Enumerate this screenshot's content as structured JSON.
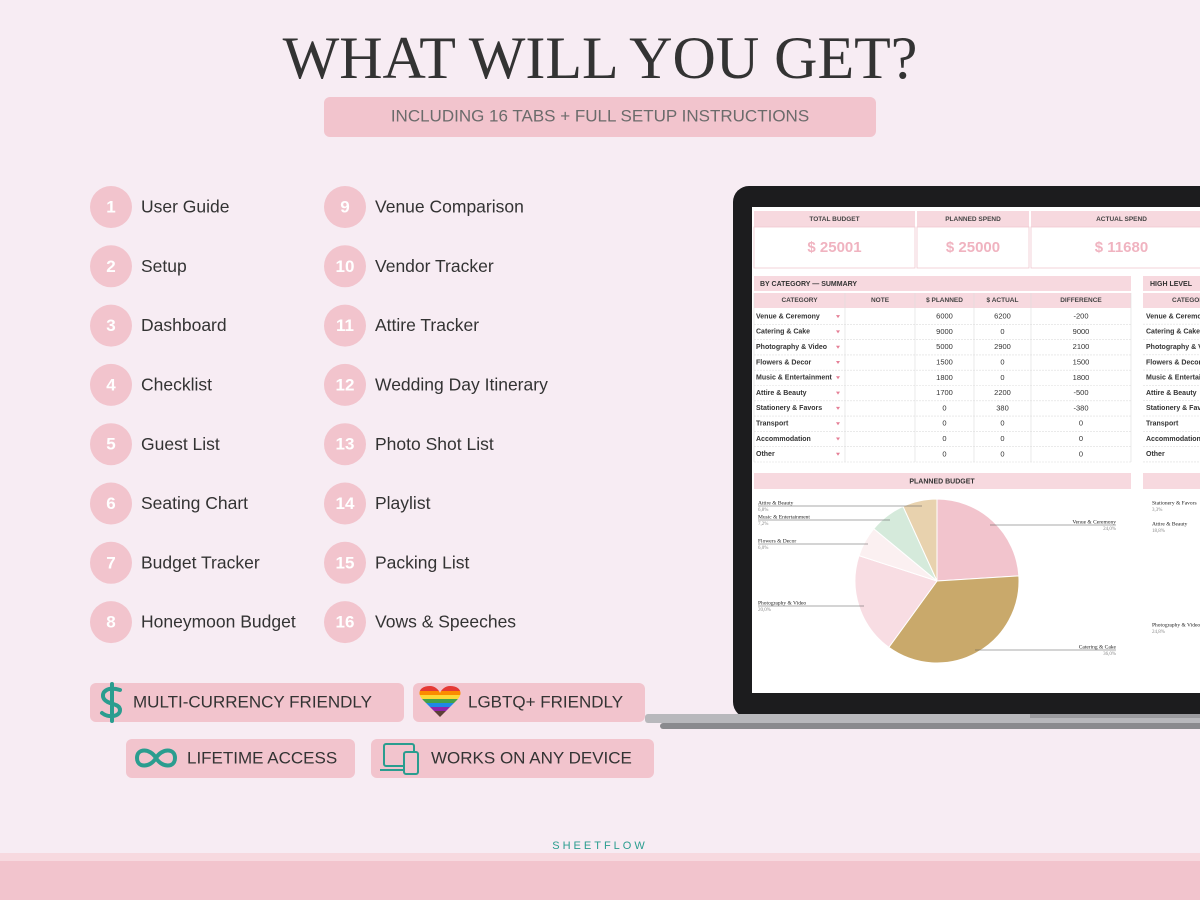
{
  "header": {
    "title": "WHAT WILL YOU GET?",
    "subtitle": "INCLUDING 16 TABS + FULL SETUP INSTRUCTIONS"
  },
  "features": [
    {
      "number": 1,
      "label": "User Guide"
    },
    {
      "number": 2,
      "label": "Setup"
    },
    {
      "number": 3,
      "label": "Dashboard"
    },
    {
      "number": 4,
      "label": "Checklist"
    },
    {
      "number": 5,
      "label": "Guest List"
    },
    {
      "number": 6,
      "label": "Seating Chart"
    },
    {
      "number": 7,
      "label": "Budget Tracker"
    },
    {
      "number": 8,
      "label": "Honeymoon Budget"
    },
    {
      "number": 9,
      "label": "Venue Comparison"
    },
    {
      "number": 10,
      "label": "Vendor Tracker"
    },
    {
      "number": 11,
      "label": "Attire Tracker"
    },
    {
      "number": 12,
      "label": "Wedding Day Itinerary"
    },
    {
      "number": 13,
      "label": "Photo Shot List"
    },
    {
      "number": 14,
      "label": "Playlist"
    },
    {
      "number": 15,
      "label": "Packing List"
    },
    {
      "number": 16,
      "label": "Vows & Speeches"
    }
  ],
  "badges": [
    "MULTI-CURRENCY FRIENDLY",
    "LGBTQ+ FRIENDLY",
    "LIFETIME ACCESS",
    "WORKS ON ANY DEVICE"
  ],
  "brand": "SHEETFLOW",
  "sheet": {
    "kpis": [
      {
        "label": "TOTAL BUDGET",
        "value": "$ 25001"
      },
      {
        "label": "PLANNED SPEND",
        "value": "$ 25000"
      },
      {
        "label": "ACTUAL SPEND",
        "value": "$ 11680"
      }
    ],
    "summary": {
      "title": "BY CATEGORY — SUMMARY",
      "columns": [
        "CATEGORY",
        "NOTE",
        "$ PLANNED",
        "$ ACTUAL",
        "DIFFERENCE"
      ],
      "rows": [
        [
          "Venue & Ceremony",
          6000,
          6200,
          -200
        ],
        [
          "Catering & Cake",
          9000,
          0,
          9000
        ],
        [
          "Photography & Video",
          5000,
          2900,
          2100
        ],
        [
          "Flowers & Decor",
          1500,
          0,
          1500
        ],
        [
          "Music & Entertainment",
          1800,
          0,
          1800
        ],
        [
          "Attire & Beauty",
          1700,
          2200,
          -500
        ],
        [
          "Stationery & Favors",
          0,
          380,
          -380
        ],
        [
          "Transport",
          0,
          0,
          0
        ],
        [
          "Accommodation",
          0,
          0,
          0
        ],
        [
          "Other",
          0,
          0,
          0
        ]
      ]
    },
    "high_level": {
      "title": "HIGH LEVEL",
      "column": "CATEGORY"
    },
    "planned_pie": {
      "title": "PLANNED BUDGET",
      "colors": [
        "#f2c4cd",
        "#c9a96b",
        "#f8dde3",
        "#fbf0f1",
        "#d5eadb",
        "#e8d2ae"
      ],
      "labels": [
        "Venue & Ceremony",
        "Catering & Cake",
        "Photography & Video",
        "Flowers & Decor",
        "Music & Entertainment",
        "Attire & Beauty"
      ],
      "value_labels": [
        "24,0%",
        "36,0%",
        "20,0%",
        "6,0%",
        "7,2%",
        "6,8%"
      ]
    },
    "actual_pie_labels": [
      {
        "label": "Stationery & Favors",
        "value_label": "3,3%"
      },
      {
        "label": "Attire & Beauty",
        "value_label": "18,8%"
      },
      {
        "label": "Photography & Video",
        "value_label": "24,8%"
      }
    ]
  }
}
